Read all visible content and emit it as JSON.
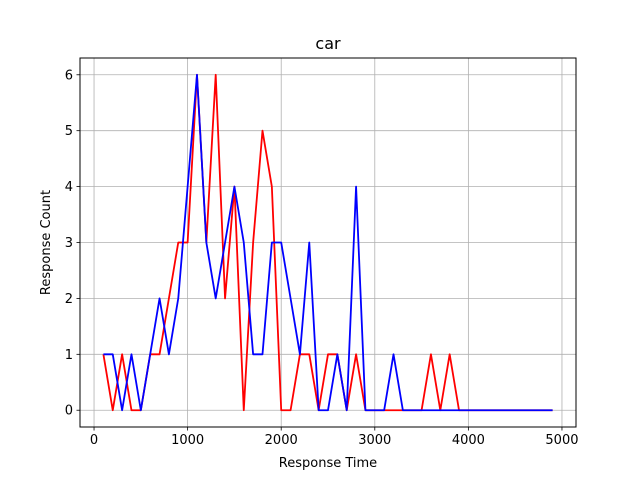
{
  "chart_data": {
    "type": "line",
    "title": "car",
    "xlabel": "Response Time",
    "ylabel": "Response Count",
    "xlim": [
      -150,
      5150
    ],
    "ylim": [
      -0.3,
      6.3
    ],
    "xticks": [
      0,
      1000,
      2000,
      3000,
      4000,
      5000
    ],
    "yticks": [
      0,
      1,
      2,
      3,
      4,
      5,
      6
    ],
    "grid": true,
    "legend": "none",
    "x": [
      100,
      200,
      300,
      400,
      500,
      600,
      700,
      800,
      900,
      1000,
      1100,
      1200,
      1300,
      1400,
      1500,
      1600,
      1700,
      1800,
      1900,
      2000,
      2100,
      2200,
      2300,
      2400,
      2500,
      2600,
      2700,
      2800,
      2900,
      3000,
      3100,
      3200,
      3300,
      3400,
      3500,
      3600,
      3700,
      3800,
      3900,
      4000,
      4100,
      4200,
      4300,
      4400,
      4500,
      4600,
      4700,
      4800,
      4900
    ],
    "series": [
      {
        "color": "#ff0000",
        "values": [
          1,
          0,
          1,
          0,
          0,
          1,
          1,
          2,
          3,
          3,
          6,
          3,
          6,
          2,
          4,
          0,
          3,
          5,
          4,
          0,
          0,
          1,
          1,
          0,
          1,
          1,
          0,
          1,
          0,
          0,
          0,
          0,
          0,
          0,
          0,
          1,
          0,
          1,
          0,
          0,
          0,
          0,
          0,
          0,
          0,
          0,
          0,
          0,
          0
        ]
      },
      {
        "color": "#0000ff",
        "values": [
          1,
          1,
          0,
          1,
          0,
          1,
          2,
          1,
          2,
          4,
          6,
          3,
          2,
          3,
          4,
          3,
          1,
          1,
          3,
          3,
          2,
          1,
          3,
          0,
          0,
          1,
          0,
          4,
          0,
          0,
          0,
          1,
          0,
          0,
          0,
          0,
          0,
          0,
          0,
          0,
          0,
          0,
          0,
          0,
          0,
          0,
          0,
          0,
          0
        ]
      }
    ]
  }
}
